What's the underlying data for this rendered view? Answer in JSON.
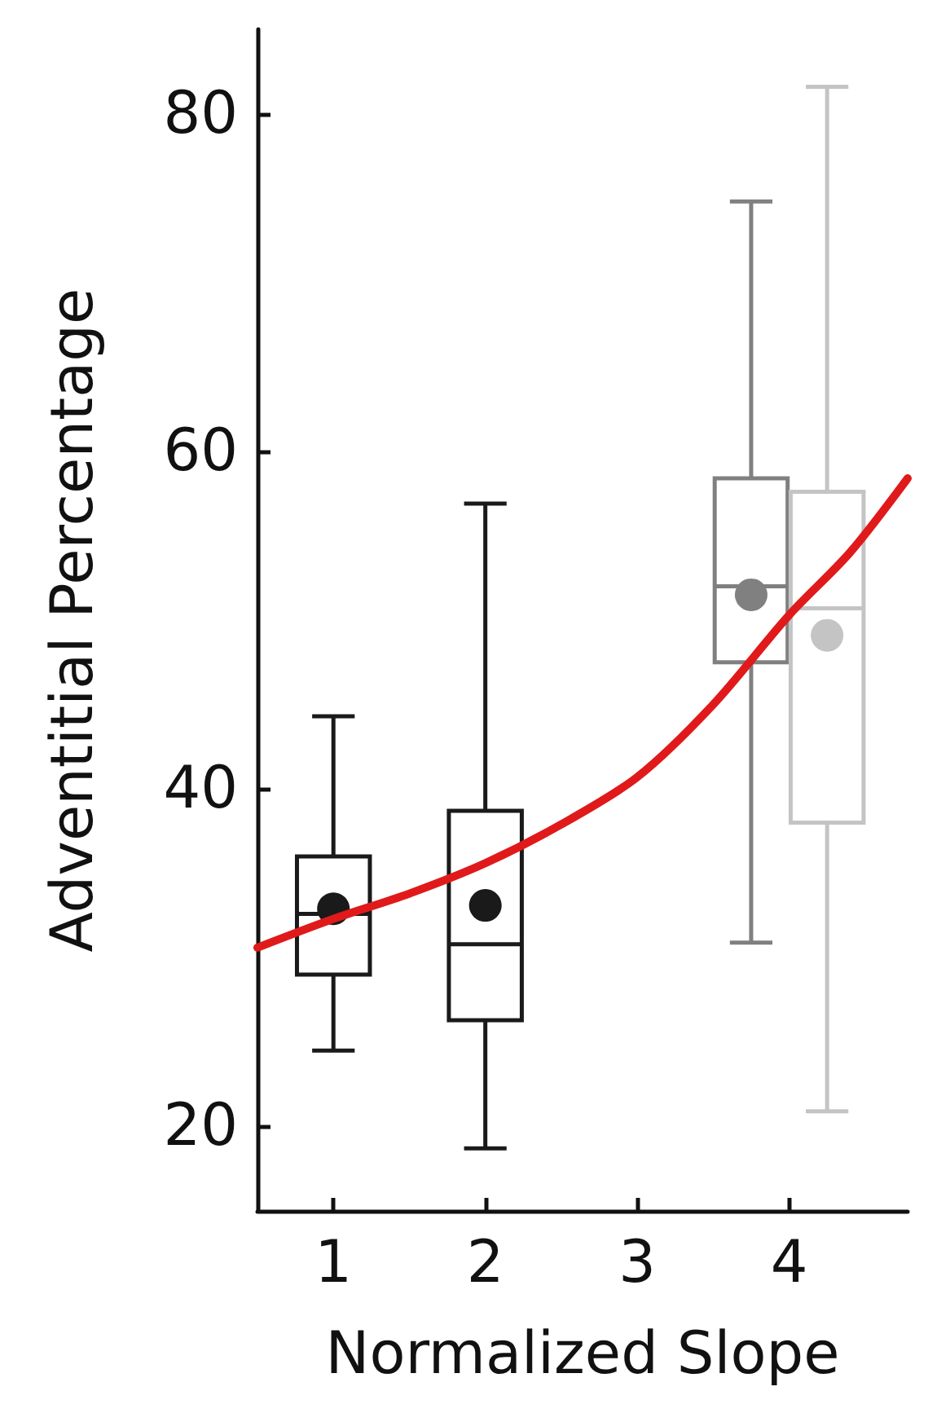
{
  "chart_data": {
    "type": "box",
    "xlabel": "Normalized Slope",
    "ylabel": "Adventitial Percentage",
    "xlim": [
      0.5,
      4.78
    ],
    "xticks": [
      1,
      2,
      3,
      4
    ],
    "ylim": [
      15,
      85
    ],
    "yticks": [
      20,
      40,
      60,
      80
    ],
    "grid": false,
    "series": [
      {
        "x": [
          1,
          2,
          3.75,
          4.25
        ],
        "colors": [
          "#1a1a1a",
          "#1a1a1a",
          "#808080",
          "#c4c4c4"
        ],
        "boxes": [
          {
            "low": 24.5,
            "q1": 29.0,
            "median": 32.6,
            "q3": 36.0,
            "high": 44.3,
            "mean": 32.9
          },
          {
            "low": 18.7,
            "q1": 26.3,
            "median": 30.8,
            "q3": 38.7,
            "high": 56.9,
            "mean": 33.1
          },
          {
            "low": 30.9,
            "q1": 47.5,
            "median": 52.0,
            "q3": 58.4,
            "high": 74.8,
            "mean": 51.5
          },
          {
            "low": 20.9,
            "q1": 38.0,
            "median": 50.7,
            "q3": 57.6,
            "high": 81.6,
            "mean": 49.1
          }
        ]
      },
      {
        "type": "line",
        "color": "#e01a1a",
        "marker": "none",
        "line_style": "solid",
        "x": [
          0.5,
          1,
          1.5,
          2,
          2.5,
          3,
          3.5,
          4,
          4.4,
          4.78
        ],
        "values": [
          30.6,
          32.3,
          33.8,
          35.6,
          37.9,
          40.7,
          45.0,
          50.3,
          54.0,
          58.4
        ]
      }
    ]
  }
}
